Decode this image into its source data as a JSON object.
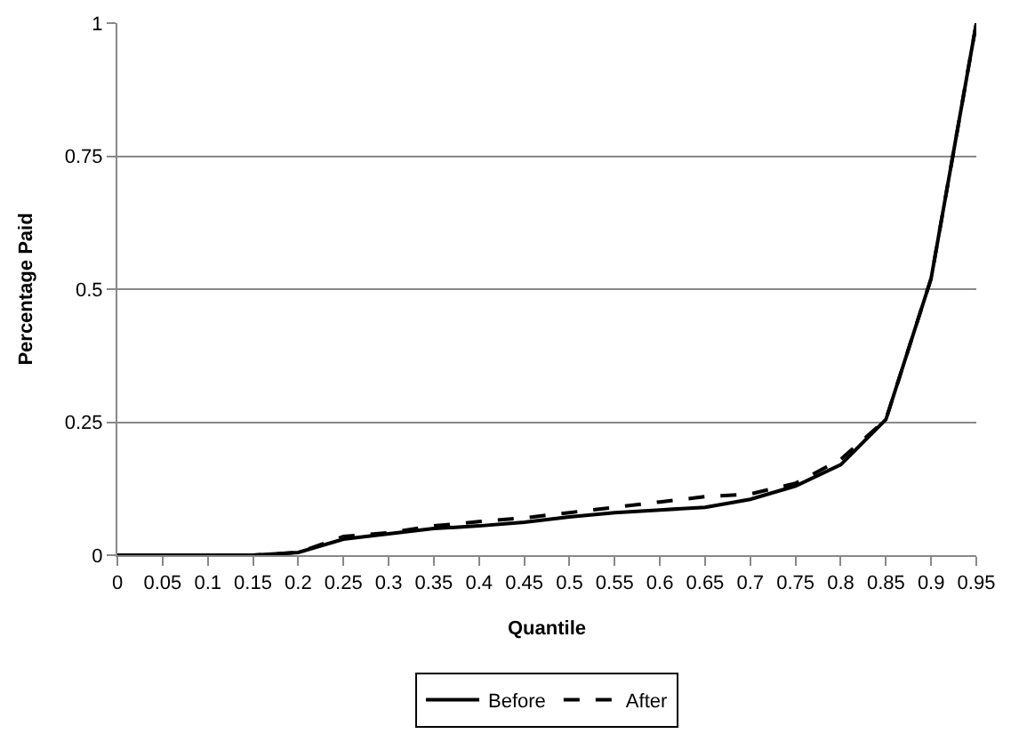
{
  "chart_data": {
    "type": "line",
    "xlabel": "Quantile",
    "ylabel": "Percentage Paid",
    "x": [
      0,
      0.05,
      0.1,
      0.15,
      0.2,
      0.25,
      0.3,
      0.35,
      0.4,
      0.45,
      0.5,
      0.55,
      0.6,
      0.65,
      0.7,
      0.75,
      0.8,
      0.85,
      0.9,
      0.95
    ],
    "series": [
      {
        "name": "Before",
        "color": "#000000",
        "line_style": "solid",
        "values": [
          0,
          0,
          0,
          0,
          0.005,
          0.03,
          0.04,
          0.05,
          0.055,
          0.062,
          0.072,
          0.08,
          0.085,
          0.09,
          0.105,
          0.13,
          0.17,
          0.255,
          0.52,
          1
        ]
      },
      {
        "name": "After",
        "color": "#000000",
        "line_style": "dashed",
        "values": [
          0,
          0,
          0,
          0,
          0.005,
          0.035,
          0.042,
          0.055,
          0.063,
          0.07,
          0.08,
          0.09,
          0.1,
          0.11,
          0.115,
          0.135,
          0.18,
          0.255,
          0.52,
          1
        ]
      }
    ],
    "xlim": [
      0,
      0.95
    ],
    "xticks": [
      0,
      0.05,
      0.1,
      0.15,
      0.2,
      0.25,
      0.3,
      0.35,
      0.4,
      0.45,
      0.5,
      0.55,
      0.6,
      0.65,
      0.7,
      0.75,
      0.8,
      0.85,
      0.9,
      0.95
    ],
    "ylim": [
      0,
      1
    ],
    "yticks": [
      0,
      0.25,
      0.5,
      0.75,
      1
    ],
    "grid": "y",
    "legend": "bottom",
    "marker": "none"
  }
}
